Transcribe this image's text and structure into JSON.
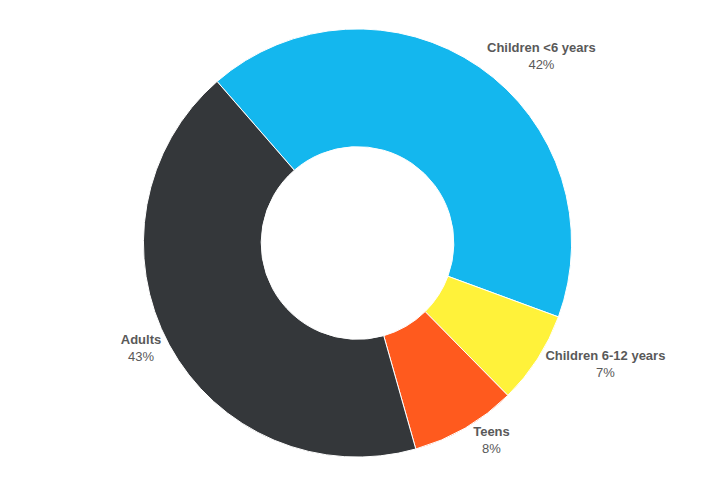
{
  "chart_data": {
    "type": "pie",
    "categories": [
      "Children <6 years",
      "Children 6-12 years",
      "Teens",
      "Adults"
    ],
    "values": [
      42,
      7,
      8,
      43
    ],
    "value_labels": [
      "42%",
      "7%",
      "8%",
      "43%"
    ],
    "colors": [
      "#14b7ee",
      "#fff23a",
      "#ff5a1e",
      "#34373a"
    ],
    "data_labels": true
  }
}
